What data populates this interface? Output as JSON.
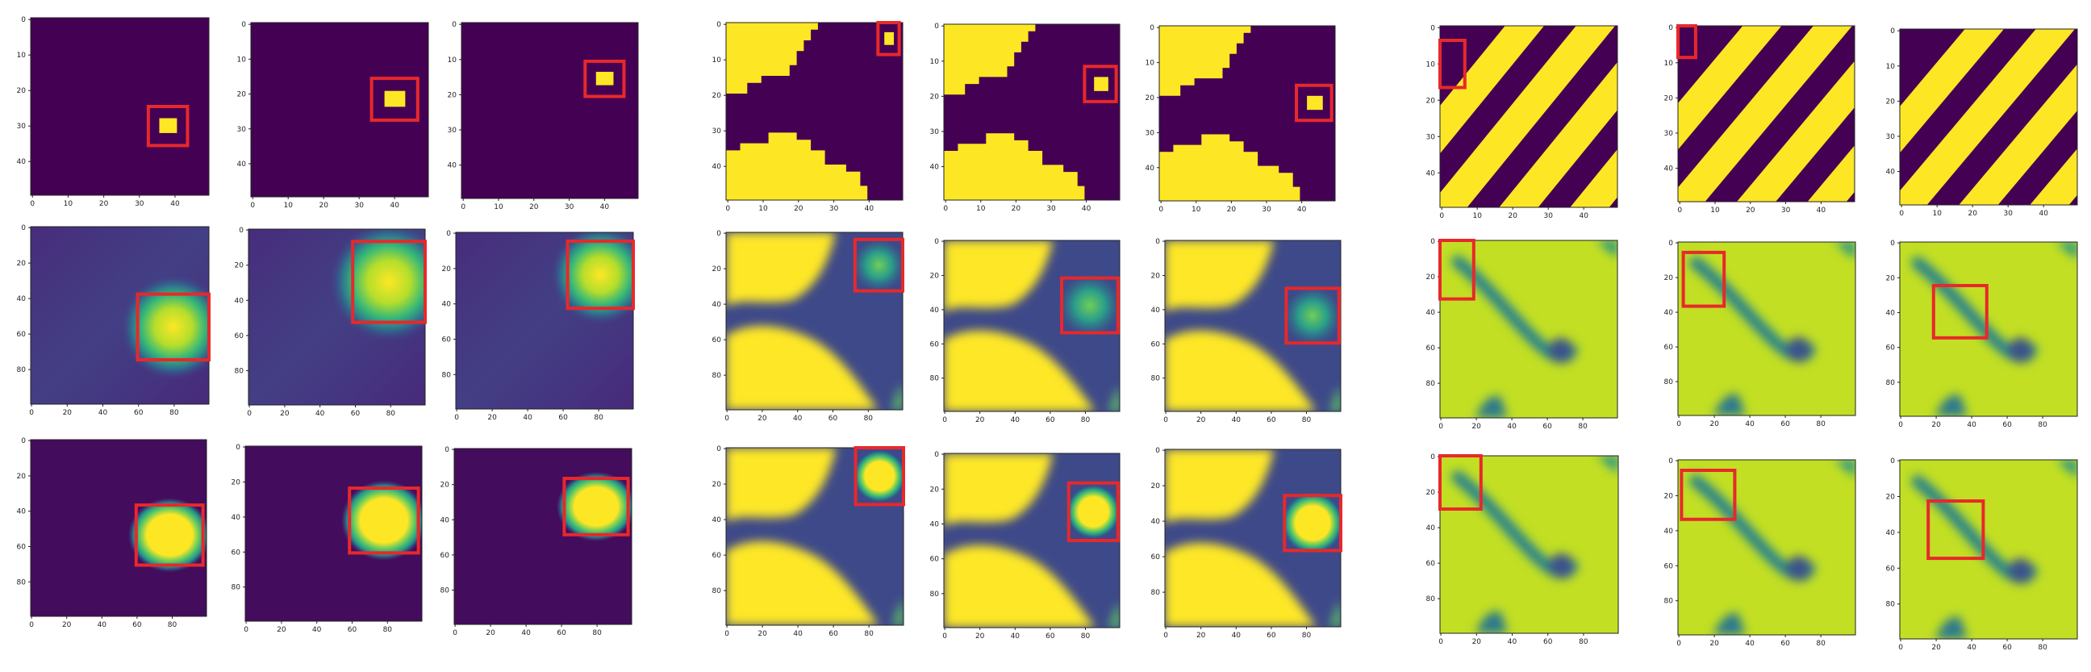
{
  "colors": {
    "purple": "#440154",
    "blue": "#3b528b",
    "teal": "#21918c",
    "green": "#5ec962",
    "yellow": "#fde725",
    "box": "#e8282b",
    "frame": "#222222"
  },
  "chart_data": {
    "type": "heatmap",
    "title": "",
    "xlabel": "",
    "ylabel": "",
    "colormap": "viridis",
    "grid": false,
    "legend": "none",
    "groups": [
      {
        "name": "",
        "rows": [
          [
            {
              "extent": 50,
              "xticks": [
                "0",
                "10",
                "20",
                "30",
                "40"
              ],
              "yticks": [
                "0",
                "10",
                "20",
                "30",
                "40"
              ],
              "pattern": "blob",
              "box": [
                33,
                25,
                11,
                11
              ]
            },
            {
              "extent": 50,
              "xticks": [
                "0",
                "10",
                "20",
                "30",
                "40"
              ],
              "yticks": [
                "0",
                "10",
                "20",
                "30",
                "40"
              ],
              "pattern": "blob",
              "box": [
                34,
                16,
                13,
                12
              ]
            },
            {
              "extent": 50,
              "xticks": [
                "0",
                "10",
                "20",
                "30",
                "40"
              ],
              "yticks": [
                "0",
                "10",
                "20",
                "30",
                "40"
              ],
              "pattern": "blob",
              "box": [
                35,
                11,
                11,
                10
              ]
            }
          ],
          [
            {
              "extent": 100,
              "xticks": [
                "0",
                "20",
                "40",
                "60",
                "80"
              ],
              "yticks": [
                "0",
                "20",
                "40",
                "60",
                "80"
              ],
              "pattern": "glow",
              "box": [
                60,
                38,
                40,
                37
              ]
            },
            {
              "extent": 100,
              "xticks": [
                "0",
                "20",
                "40",
                "60",
                "80"
              ],
              "yticks": [
                "0",
                "20",
                "40",
                "60",
                "80"
              ],
              "pattern": "glow",
              "box": [
                59,
                7,
                41,
                46
              ]
            },
            {
              "extent": 100,
              "xticks": [
                "0",
                "20",
                "40",
                "60",
                "80"
              ],
              "yticks": [
                "0",
                "20",
                "40",
                "60",
                "80"
              ],
              "pattern": "glow",
              "box": [
                63,
                5,
                37,
                38
              ]
            }
          ],
          [
            {
              "extent": 100,
              "xticks": [
                "0",
                "20",
                "40",
                "60",
                "80"
              ],
              "yticks": [
                "0",
                "20",
                "40",
                "60",
                "80"
              ],
              "pattern": "glow",
              "box": [
                60,
                37,
                38,
                34
              ]
            },
            {
              "extent": 100,
              "xticks": [
                "0",
                "20",
                "40",
                "60",
                "80"
              ],
              "yticks": [
                "0",
                "20",
                "40",
                "60",
                "80"
              ],
              "pattern": "glow",
              "box": [
                59,
                24,
                39,
                37
              ]
            },
            {
              "extent": 100,
              "xticks": [
                "0",
                "20",
                "40",
                "60",
                "80"
              ],
              "yticks": [
                "0",
                "20",
                "40",
                "60",
                "80"
              ],
              "pattern": "glow",
              "box": [
                62,
                17,
                36,
                32
              ]
            }
          ]
        ]
      },
      {
        "name": "",
        "rows": [
          [
            {
              "extent": 50,
              "xticks": [
                "0",
                "10",
                "20",
                "30",
                "40"
              ],
              "yticks": [
                "0",
                "10",
                "20",
                "30",
                "40"
              ],
              "pattern": "cross",
              "box": [
                43,
                0,
                6,
                9
              ]
            },
            {
              "extent": 50,
              "xticks": [
                "0",
                "10",
                "20",
                "30",
                "40"
              ],
              "yticks": [
                "0",
                "10",
                "20",
                "30",
                "40"
              ],
              "pattern": "cross",
              "box": [
                40,
                12,
                9,
                10
              ]
            },
            {
              "extent": 50,
              "xticks": [
                "0",
                "10",
                "20",
                "30",
                "40"
              ],
              "yticks": [
                "0",
                "10",
                "20",
                "30",
                "40"
              ],
              "pattern": "cross",
              "box": [
                39,
                17,
                10,
                10
              ]
            }
          ],
          [
            {
              "extent": 100,
              "xticks": [
                "0",
                "20",
                "40",
                "60",
                "80"
              ],
              "yticks": [
                "0",
                "20",
                "40",
                "60",
                "80"
              ],
              "pattern": "crossSoft",
              "box": [
                73,
                4,
                27,
                29
              ]
            },
            {
              "extent": 100,
              "xticks": [
                "0",
                "20",
                "40",
                "60",
                "80"
              ],
              "yticks": [
                "0",
                "20",
                "40",
                "60",
                "80"
              ],
              "pattern": "crossSoft",
              "box": [
                67,
                22,
                32,
                32
              ]
            },
            {
              "extent": 100,
              "xticks": [
                "0",
                "20",
                "40",
                "60",
                "80"
              ],
              "yticks": [
                "0",
                "20",
                "40",
                "60",
                "80"
              ],
              "pattern": "crossSoft",
              "box": [
                69,
                28,
                30,
                32
              ]
            }
          ],
          [
            {
              "extent": 100,
              "xticks": [
                "0",
                "20",
                "40",
                "60",
                "80"
              ],
              "yticks": [
                "0",
                "20",
                "40",
                "60",
                "80"
              ],
              "pattern": "crossSoft",
              "box": [
                73,
                0,
                27,
                32
              ]
            },
            {
              "extent": 100,
              "xticks": [
                "0",
                "20",
                "40",
                "60",
                "80"
              ],
              "yticks": [
                "0",
                "20",
                "40",
                "60",
                "80"
              ],
              "pattern": "crossSoft",
              "box": [
                71,
                17,
                28,
                33
              ]
            },
            {
              "extent": 100,
              "xticks": [
                "0",
                "20",
                "40",
                "60",
                "80"
              ],
              "yticks": [
                "0",
                "20",
                "40",
                "60",
                "80"
              ],
              "pattern": "crossSoft",
              "box": [
                68,
                26,
                32,
                31
              ]
            }
          ]
        ]
      },
      {
        "name": "",
        "rows": [
          [
            {
              "extent": 50,
              "xticks": [
                "0",
                "10",
                "20",
                "30",
                "40"
              ],
              "yticks": [
                "0",
                "10",
                "20",
                "30",
                "40"
              ],
              "pattern": "stripes",
              "box": [
                0,
                4,
                7,
                13
              ]
            },
            {
              "extent": 50,
              "xticks": [
                "0",
                "10",
                "20",
                "30",
                "40"
              ],
              "yticks": [
                "0",
                "10",
                "20",
                "30",
                "40"
              ],
              "pattern": "stripes",
              "box": [
                0,
                0,
                5,
                9
              ]
            },
            {
              "extent": 50,
              "xticks": [
                "0",
                "10",
                "20",
                "30",
                "40"
              ],
              "yticks": [
                "0",
                "10",
                "20",
                "30",
                "40"
              ],
              "pattern": "stripes",
              "box": null
            }
          ],
          [
            {
              "extent": 100,
              "xticks": [
                "0",
                "20",
                "40",
                "60",
                "80"
              ],
              "yticks": [
                "0",
                "20",
                "40",
                "60",
                "80"
              ],
              "pattern": "stripesSoft",
              "box": [
                0,
                0,
                19,
                33
              ]
            },
            {
              "extent": 100,
              "xticks": [
                "0",
                "20",
                "40",
                "60",
                "80"
              ],
              "yticks": [
                "0",
                "20",
                "40",
                "60",
                "80"
              ],
              "pattern": "stripesSoft",
              "box": [
                3,
                6,
                23,
                31
              ]
            },
            {
              "extent": 100,
              "xticks": [
                "0",
                "20",
                "40",
                "60",
                "80"
              ],
              "yticks": [
                "0",
                "20",
                "40",
                "60",
                "80"
              ],
              "pattern": "stripesSoft",
              "box": [
                19,
                25,
                30,
                30
              ]
            }
          ],
          [
            {
              "extent": 100,
              "xticks": [
                "0",
                "20",
                "40",
                "60",
                "80"
              ],
              "yticks": [
                "0",
                "20",
                "40",
                "60",
                "80"
              ],
              "pattern": "stripesSoft",
              "box": [
                0,
                0,
                23,
                30
              ]
            },
            {
              "extent": 100,
              "xticks": [
                "0",
                "20",
                "40",
                "60",
                "80"
              ],
              "yticks": [
                "0",
                "20",
                "40",
                "60",
                "80"
              ],
              "pattern": "stripesSoft",
              "box": [
                2,
                6,
                30,
                28
              ]
            },
            {
              "extent": 100,
              "xticks": [
                "0",
                "20",
                "40",
                "60",
                "80"
              ],
              "yticks": [
                "0",
                "20",
                "40",
                "60",
                "80"
              ],
              "pattern": "stripesSoft",
              "box": [
                16,
                23,
                31,
                32
              ]
            }
          ]
        ]
      }
    ]
  }
}
